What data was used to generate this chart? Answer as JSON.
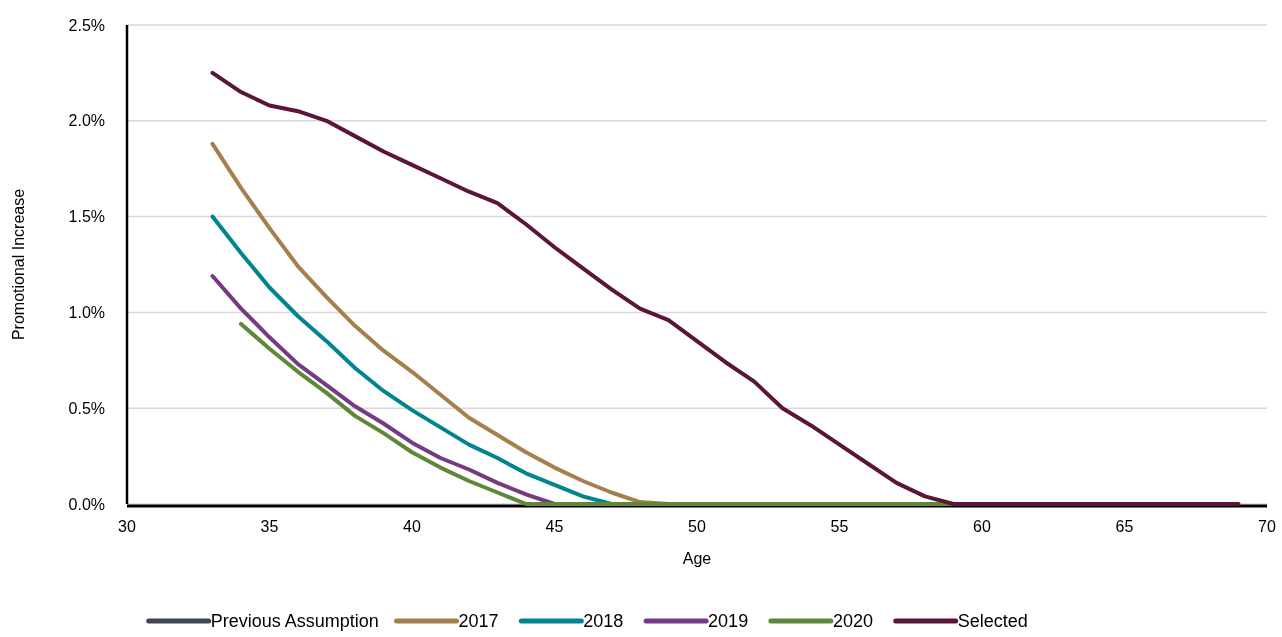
{
  "chart_data": {
    "type": "line",
    "xlabel": "Age",
    "ylabel": "Promotional Increase",
    "x": [
      33,
      34,
      35,
      36,
      37,
      38,
      39,
      40,
      41,
      42,
      43,
      44,
      45,
      46,
      47,
      48,
      49,
      50,
      51,
      52,
      53,
      54,
      55,
      56,
      57,
      58,
      59,
      60,
      61,
      62,
      63,
      64,
      65,
      66,
      67,
      68,
      69
    ],
    "xlim": [
      30,
      70
    ],
    "xticks": [
      30,
      35,
      40,
      45,
      50,
      55,
      60,
      65,
      70
    ],
    "ylim": [
      0,
      2.5
    ],
    "yticks": [
      {
        "value": 0,
        "label": "0.0%"
      },
      {
        "value": 0.5,
        "label": "0.5%"
      },
      {
        "value": 1,
        "label": "1.0%"
      },
      {
        "value": 1.5,
        "label": "1.5%"
      },
      {
        "value": 2,
        "label": "2.0%"
      },
      {
        "value": 2.5,
        "label": "2.5%"
      }
    ],
    "grid": "y",
    "legend": "bottom",
    "marker": "none",
    "line_style": "solid",
    "series": [
      {
        "name": "Previous Assumption",
        "color": "#404650",
        "values": [
          null,
          null,
          null,
          null,
          null,
          null,
          null,
          null,
          null,
          null,
          null,
          null,
          null,
          null,
          null,
          null,
          null,
          null,
          null,
          null,
          null,
          null,
          null,
          null,
          null,
          null,
          null,
          null,
          null,
          null,
          null,
          null,
          null,
          null,
          null,
          null,
          null
        ]
      },
      {
        "name": "2017",
        "color": "#a57f4c",
        "values": [
          1.88,
          1.65,
          1.44,
          1.24,
          1.08,
          0.93,
          0.8,
          0.69,
          0.57,
          0.45,
          0.36,
          0.27,
          0.19,
          0.12,
          0.06,
          0.01,
          0,
          null,
          null,
          null,
          null,
          null,
          null,
          null,
          null,
          null,
          null,
          null,
          null,
          null,
          null,
          null,
          null,
          null,
          null,
          null,
          null
        ]
      },
      {
        "name": "2018",
        "color": "#00848f",
        "values": [
          1.5,
          1.31,
          1.13,
          0.98,
          0.85,
          0.71,
          0.59,
          0.49,
          0.4,
          0.31,
          0.24,
          0.16,
          0.1,
          0.04,
          0,
          null,
          null,
          null,
          null,
          null,
          null,
          null,
          null,
          null,
          null,
          null,
          null,
          null,
          null,
          null,
          null,
          null,
          null,
          null,
          null,
          null,
          null
        ]
      },
      {
        "name": "2019",
        "color": "#763a84",
        "values": [
          1.19,
          1.02,
          0.87,
          0.73,
          0.62,
          0.51,
          0.42,
          0.32,
          0.24,
          0.18,
          0.11,
          0.05,
          0,
          null,
          null,
          null,
          null,
          null,
          null,
          null,
          null,
          null,
          null,
          null,
          null,
          null,
          null,
          null,
          null,
          null,
          null,
          null,
          null,
          null,
          null,
          null,
          null
        ]
      },
      {
        "name": "2020",
        "color": "#5e8838",
        "values": [
          null,
          0.94,
          0.81,
          0.69,
          0.58,
          0.46,
          0.37,
          0.27,
          0.19,
          0.12,
          0.06,
          0,
          0,
          0,
          0,
          0,
          0,
          0,
          0,
          0,
          0,
          0,
          0,
          0,
          0,
          0,
          0,
          null,
          null,
          null,
          null,
          null,
          null,
          null,
          null,
          null,
          null
        ]
      },
      {
        "name": "Selected",
        "color": "#5a1538",
        "values": [
          2.25,
          2.15,
          2.08,
          2.05,
          2,
          1.92,
          1.84,
          1.77,
          1.7,
          1.63,
          1.57,
          1.46,
          1.34,
          1.23,
          1.12,
          1.02,
          0.96,
          0.85,
          0.74,
          0.64,
          0.5,
          0.41,
          0.31,
          0.21,
          0.11,
          0.04,
          0,
          0,
          0,
          0,
          0,
          0,
          0,
          0,
          0,
          0,
          0
        ]
      }
    ]
  }
}
